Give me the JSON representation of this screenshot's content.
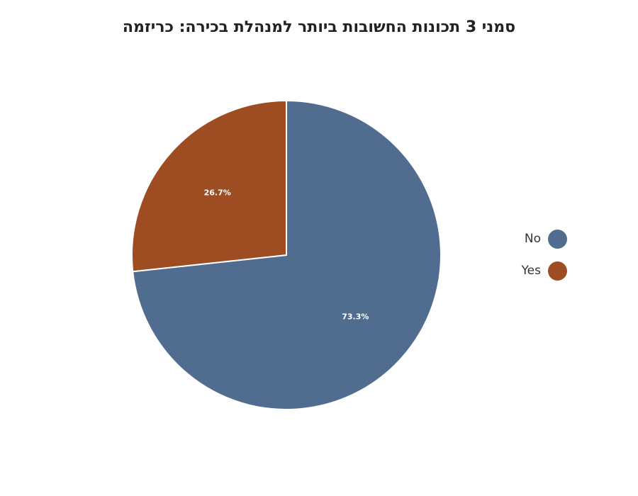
{
  "chart_data": {
    "type": "pie",
    "title": "סמני 3 תכונות החשובות ביותר למנהלת בכירה: כריזמה",
    "slices": [
      {
        "label": "No",
        "value": 73.3,
        "display": "73.3%",
        "color": "#506d8f"
      },
      {
        "label": "Yes",
        "value": 26.7,
        "display": "26.7%",
        "color": "#9e4c22"
      }
    ],
    "legend_position": "right"
  }
}
